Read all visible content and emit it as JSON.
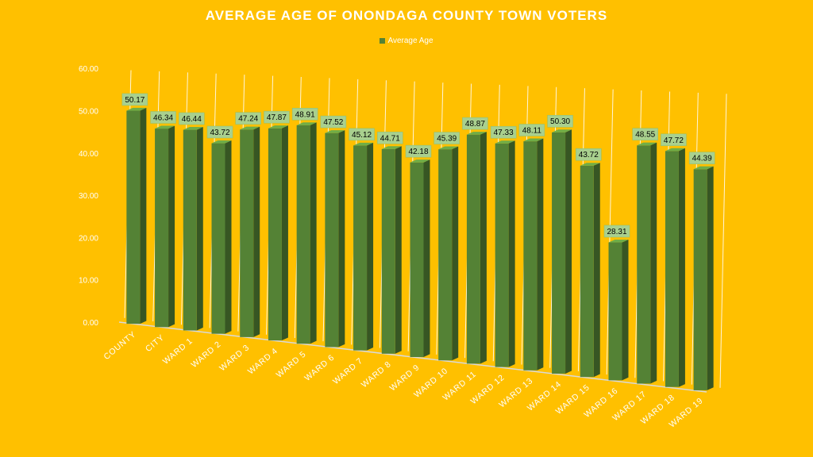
{
  "chart_data": {
    "type": "bar",
    "style": "3d-column",
    "title": "AVERAGE AGE OF ONONDAGA COUNTY TOWN VOTERS",
    "series": [
      {
        "name": "Average Age",
        "values": [
          50.17,
          46.34,
          46.44,
          43.72,
          47.24,
          47.87,
          48.91,
          47.52,
          45.12,
          44.71,
          42.18,
          45.39,
          48.87,
          47.33,
          48.11,
          50.3,
          43.72,
          28.31,
          48.55,
          47.72,
          44.39
        ]
      }
    ],
    "categories": [
      "COUNTY",
      "CITY",
      "WARD 1",
      "WARD 2",
      "WARD 3",
      "WARD 4",
      "WARD 5",
      "WARD 6",
      "WARD 7",
      "WARD 8",
      "WARD 9",
      "WARD 10",
      "WARD 11",
      "WARD 12",
      "WARD 13",
      "WARD 14",
      "WARD 15",
      "WARD 16",
      "WARD 17",
      "WARD 18",
      "WARD 19"
    ],
    "y_ticks": [
      "0.00",
      "10.00",
      "20.00",
      "30.00",
      "40.00",
      "50.00",
      "60.00"
    ],
    "ylim": [
      0,
      60
    ],
    "legend_position": "top",
    "grid": true
  },
  "colors": {
    "background": "#FFC000",
    "bar_front": "#548235",
    "bar_side": "#375623",
    "bar_top": "#70AD47",
    "label_fill": "#A9D08E"
  }
}
